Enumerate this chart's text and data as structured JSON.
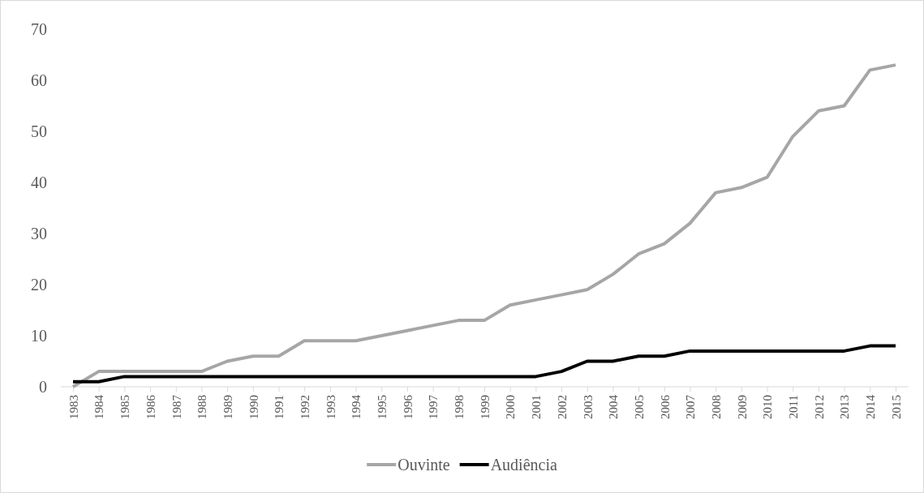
{
  "chart_data": {
    "type": "line",
    "categories": [
      "1983",
      "1984",
      "1985",
      "1986",
      "1987",
      "1988",
      "1989",
      "1990",
      "1991",
      "1992",
      "1993",
      "1994",
      "1995",
      "1996",
      "1997",
      "1998",
      "1999",
      "2000",
      "2001",
      "2002",
      "2003",
      "2004",
      "2005",
      "2006",
      "2007",
      "2008",
      "2009",
      "2010",
      "2011",
      "2012",
      "2013",
      "2014",
      "2015"
    ],
    "series": [
      {
        "name": "Ouvinte",
        "color": "#a6a6a6",
        "values": [
          0,
          3,
          3,
          3,
          3,
          3,
          5,
          6,
          6,
          9,
          9,
          9,
          10,
          11,
          12,
          13,
          13,
          16,
          17,
          18,
          19,
          22,
          26,
          28,
          32,
          38,
          39,
          41,
          49,
          54,
          55,
          62,
          63
        ]
      },
      {
        "name": "Audiência",
        "color": "#000000",
        "values": [
          1,
          1,
          2,
          2,
          2,
          2,
          2,
          2,
          2,
          2,
          2,
          2,
          2,
          2,
          2,
          2,
          2,
          2,
          2,
          3,
          5,
          5,
          6,
          6,
          7,
          7,
          7,
          7,
          7,
          7,
          7,
          8,
          8
        ]
      }
    ],
    "ylim": [
      0,
      70
    ],
    "yticks": [
      0,
      10,
      20,
      30,
      40,
      50,
      60,
      70
    ],
    "grid": false,
    "legend": "bottom",
    "line_style": "solid",
    "marker": "none"
  }
}
